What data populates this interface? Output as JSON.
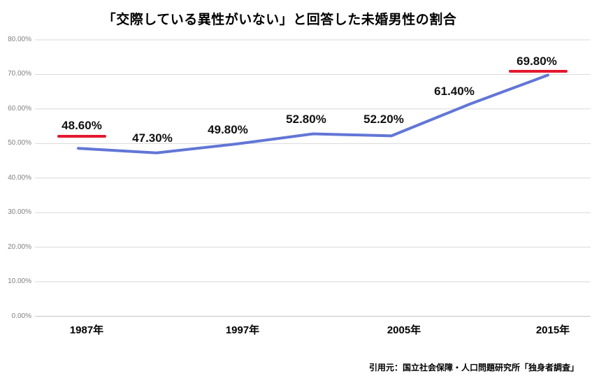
{
  "title": "「交際している異性がいない」と回答した未婚男性の割合",
  "source": "引用元：国立社会保障・人口問題研究所「独身者調査」",
  "colors": {
    "line": "#6276d6",
    "highlight_red": "#e2192e",
    "grid": "#d9d9d9",
    "axis": "#c6c6c6",
    "y_tick_text": "#808080",
    "text": "#000000"
  },
  "chart_data": {
    "type": "line",
    "title": "「交際している異性がいない」と回答した未婚男性の割合",
    "x": [
      1987,
      1992,
      1997,
      2002,
      2005,
      2010,
      2015
    ],
    "values": [
      48.6,
      47.3,
      49.8,
      52.8,
      52.2,
      61.4,
      69.8
    ],
    "data_labels": [
      "48.60%",
      "47.30%",
      "49.80%",
      "52.80%",
      "52.20%",
      "61.40%",
      "69.80%"
    ],
    "highlighted_indices": [
      0,
      6
    ],
    "x_tick_labels": [
      "1987年",
      "1997年",
      "2005年",
      "2015年"
    ],
    "x_tick_at_point_index": [
      0,
      2,
      4,
      6
    ],
    "y_tick_labels": [
      "80.00%",
      "70.00%",
      "60.00%",
      "50.00%",
      "40.00%",
      "30.00%",
      "20.00%",
      "10.00%",
      "0.00%"
    ],
    "ylim": [
      0,
      80
    ],
    "y_tick_step": 10,
    "grid": true,
    "legend": "none",
    "xlabel": "",
    "ylabel": ""
  }
}
